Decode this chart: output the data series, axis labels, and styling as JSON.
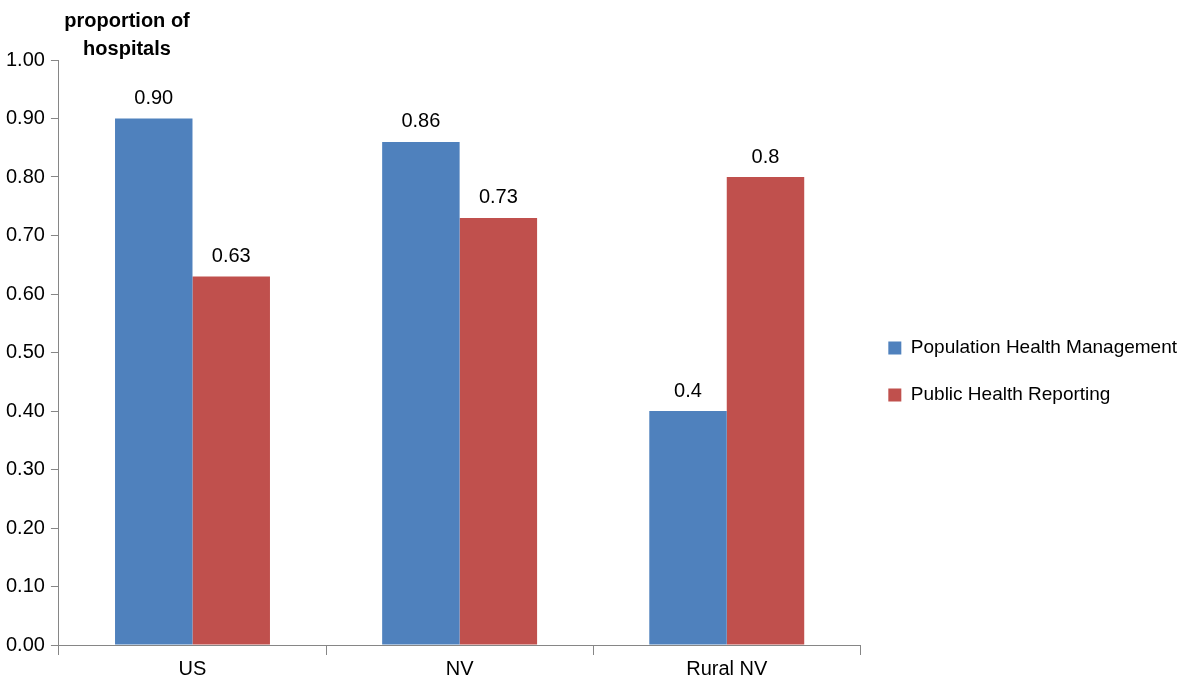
{
  "chart_data": {
    "type": "bar",
    "ylabel": "proportion of hospitals",
    "categories": [
      "US",
      "NV",
      "Rural NV"
    ],
    "series": [
      {
        "name": "Population Health Management",
        "color": "#4f81bd",
        "values": [
          0.9,
          0.86,
          0.4
        ],
        "value_labels": [
          "0.90",
          "0.86",
          "0.4"
        ]
      },
      {
        "name": "Public Health Reporting",
        "color": "#c0504d",
        "values": [
          0.63,
          0.73,
          0.8
        ],
        "value_labels": [
          "0.63",
          "0.73",
          "0.8"
        ]
      }
    ],
    "ylim": [
      0,
      1
    ],
    "yticks": [
      {
        "value": 0,
        "label": "0.00"
      },
      {
        "value": 0.1,
        "label": "0.10"
      },
      {
        "value": 0.2,
        "label": "0.20"
      },
      {
        "value": 0.3,
        "label": "0.30"
      },
      {
        "value": 0.4,
        "label": "0.40"
      },
      {
        "value": 0.5,
        "label": "0.50"
      },
      {
        "value": 0.6,
        "label": "0.60"
      },
      {
        "value": 0.7,
        "label": "0.70"
      },
      {
        "value": 0.8,
        "label": "0.80"
      },
      {
        "value": 0.9,
        "label": "0.90"
      },
      {
        "value": 1,
        "label": "1.00"
      }
    ],
    "grid": false,
    "legend": "right"
  }
}
